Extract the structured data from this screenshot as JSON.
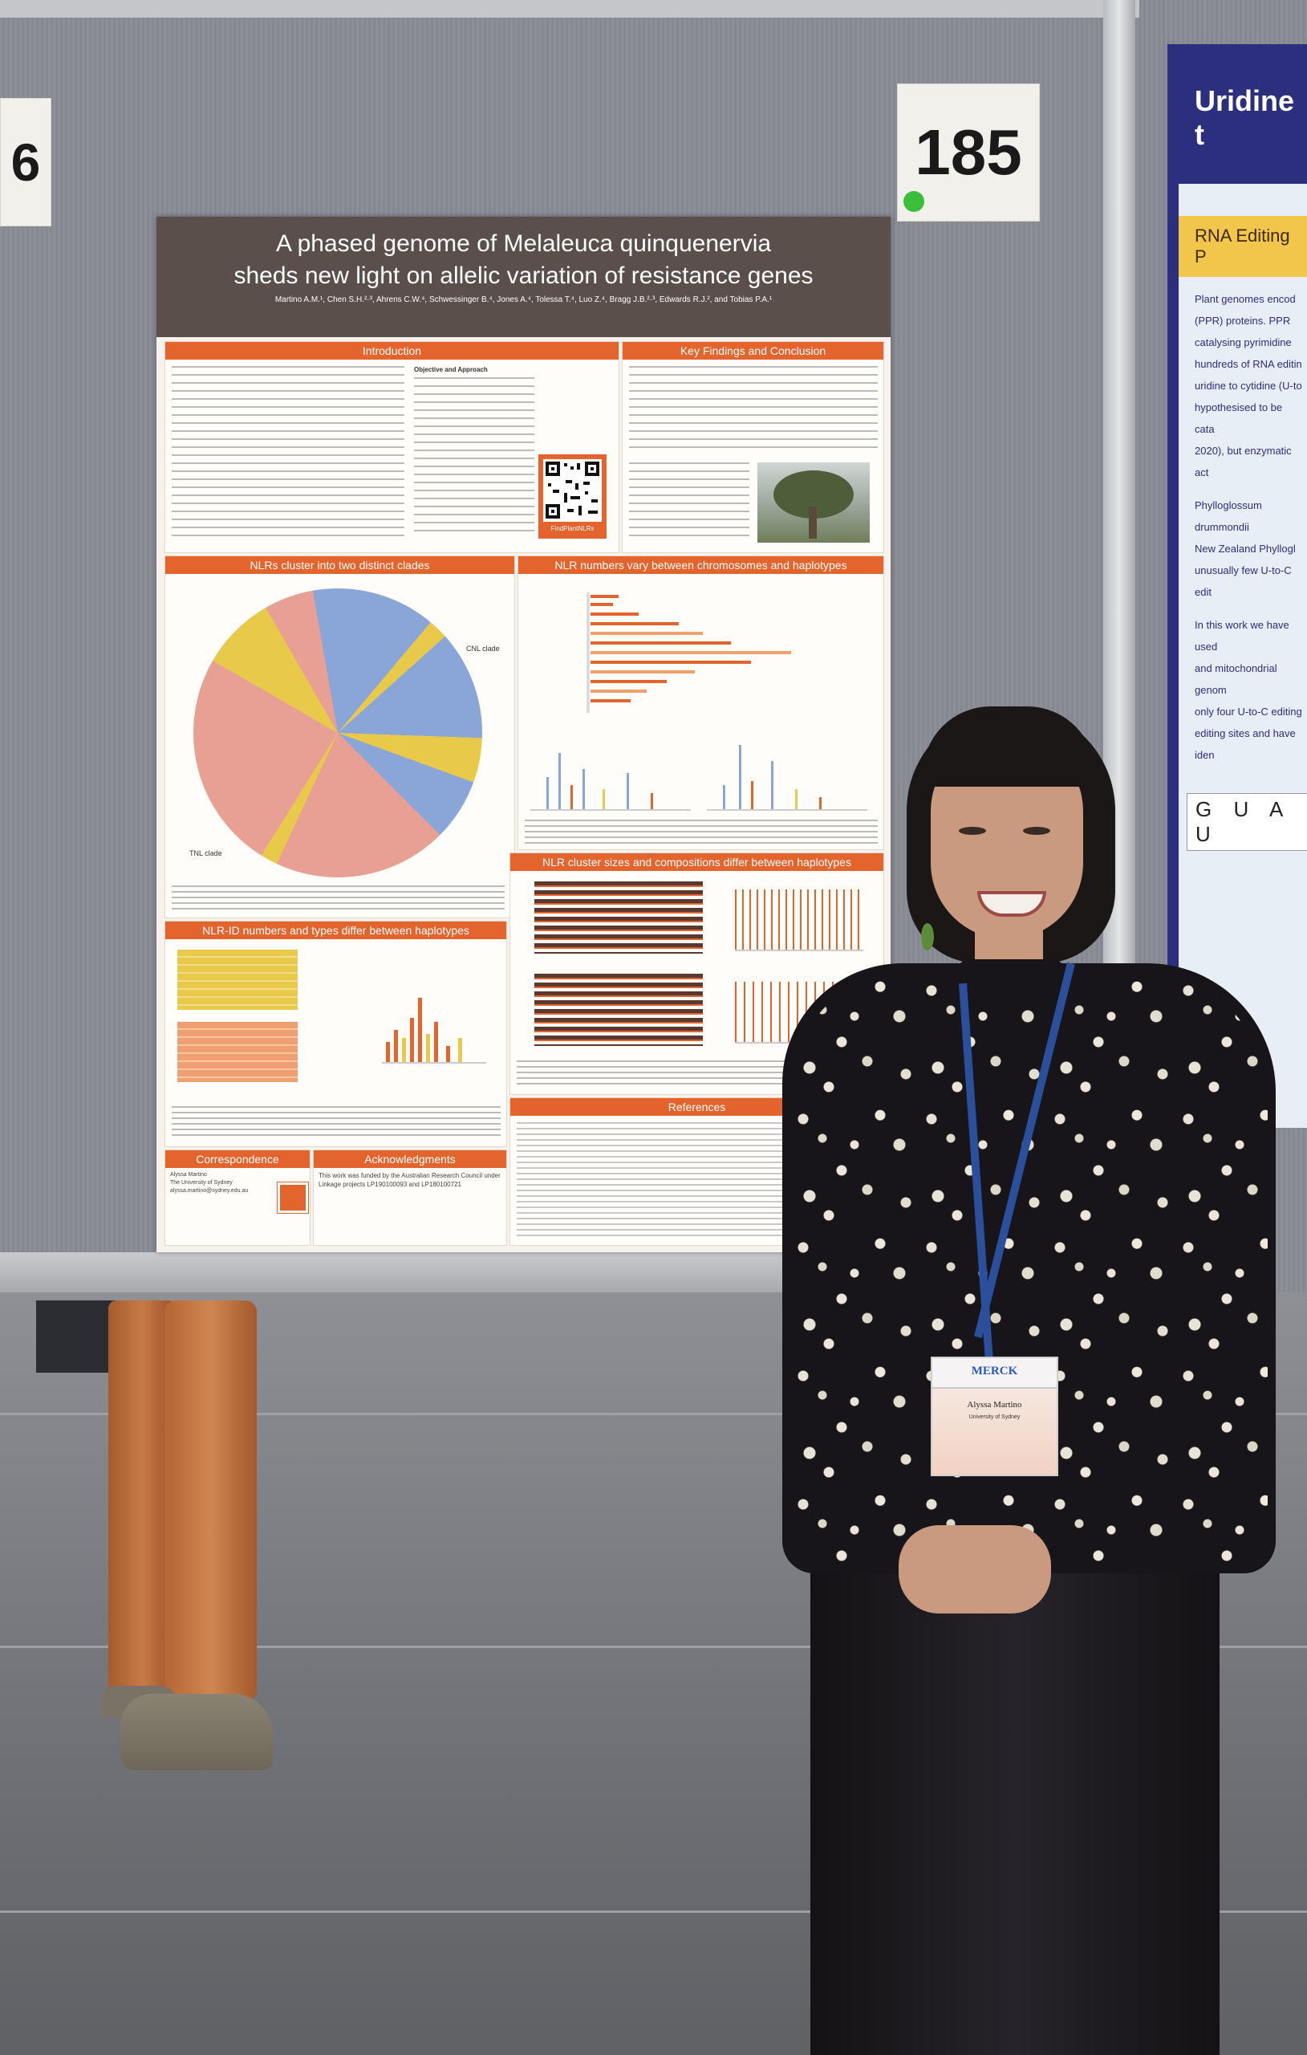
{
  "board": {
    "number_left": "6",
    "number_right": "185"
  },
  "neighbour_poster": {
    "title": "Uridine t",
    "subtitle": "RNA Editing P",
    "text_lines": [
      "Plant genomes encod",
      "(PPR) proteins. PPR",
      "catalysing pyrimidine",
      "hundreds of RNA editin",
      "uridine to cytidine (U-to",
      "hypothesised to be cata",
      "2020), but enzymatic act",
      "Phylloglossum drummondii",
      "New Zealand Phyllogl",
      "unusually few U-to-C edit",
      "In this work we have used",
      "and mitochondrial genom",
      "only four U-to-C editing",
      "editing sites and have iden"
    ],
    "sequence": "G U A U"
  },
  "poster": {
    "title_line1": "A phased genome of Melaleuca quinquenervia",
    "title_line2": "sheds new light on allelic variation of resistance genes",
    "authors": "Martino A.M.¹, Chen S.H.²·³, Ahrens C.W.⁴, Schwessinger B.⁴, Jones A.⁴, Tolessa T.⁴, Luo Z.⁴, Bragg J.B.²·³, Edwards R.J.², and Tobias P.A.¹",
    "sections": {
      "intro": "Introduction",
      "key": "Key Findings and Conclusion",
      "clades": "NLRs cluster into two distinct clades",
      "numbers": "NLR numbers vary between chromosomes and haplotypes",
      "cluster": "NLR cluster sizes and compositions differ between haplotypes",
      "nlrid": "NLR-ID numbers and types differ between haplotypes",
      "references": "References",
      "correspondence": "Correspondence",
      "acknowledgments": "Acknowledgments"
    },
    "objective_heading": "Objective and Approach",
    "qr_caption": "FindPlantNLRs",
    "clade_labels": {
      "cnl": "CNL clade",
      "tnl": "TNL clade"
    },
    "correspondence_text": "Alyssa Martino\nThe University of Sydney\nalyssa.martino@sydney.edu.au",
    "acknowledgments_text": "This work was funded by the Australian Research Council under Linkage projects LP190100093 and LP180100721"
  },
  "badge": {
    "sponsor": "MERCK",
    "name": "Alyssa Martino",
    "affiliation": "University of Sydney"
  },
  "colors": {
    "poster_header": "#5a4f4a",
    "section_orange": "#e3642c",
    "pie_red": "#e8a095",
    "pie_blue": "#8aa6d8",
    "pie_yellow": "#e9c94a"
  }
}
